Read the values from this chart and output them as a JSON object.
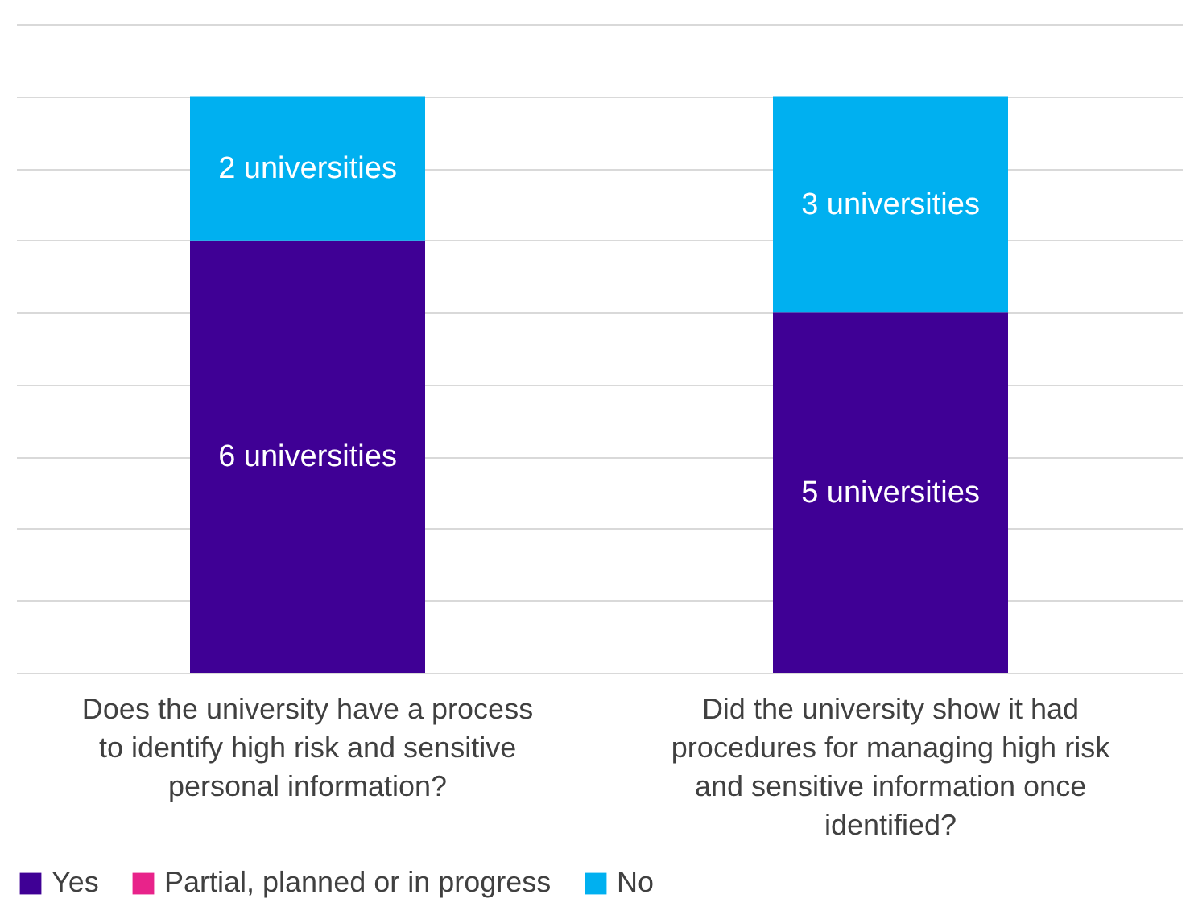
{
  "chart_data": {
    "type": "bar",
    "stacked": true,
    "categories": [
      "Does the university have a process to identify high risk and sensitive personal information?",
      "Did the university show it had procedures for managing high risk and sensitive information once identified?"
    ],
    "series": [
      {
        "name": "Yes",
        "color": "#3f0095",
        "values": [
          6,
          5
        ],
        "value_labels": [
          "6 universities",
          "5 universities"
        ]
      },
      {
        "name": "Partial, planned or in progress",
        "color": "#e8238a",
        "values": [
          null,
          null
        ]
      },
      {
        "name": "No",
        "color": "#00b0f0",
        "values": [
          2,
          3
        ],
        "value_labels": [
          "2 universities",
          "3 universities"
        ]
      }
    ],
    "ylim": [
      0,
      9
    ],
    "yticks": [
      {
        "value": 0,
        "label": null
      },
      {
        "value": 1,
        "label": null
      },
      {
        "value": 2,
        "label": null
      },
      {
        "value": 3,
        "label": null
      },
      {
        "value": 4,
        "label": null
      },
      {
        "value": 5,
        "label": null
      },
      {
        "value": 6,
        "label": null
      },
      {
        "value": 7,
        "label": null
      },
      {
        "value": 8,
        "label": null
      },
      {
        "value": 9,
        "label": null
      }
    ],
    "tick_labels": "x",
    "grid": "y",
    "legend": "bottom"
  }
}
